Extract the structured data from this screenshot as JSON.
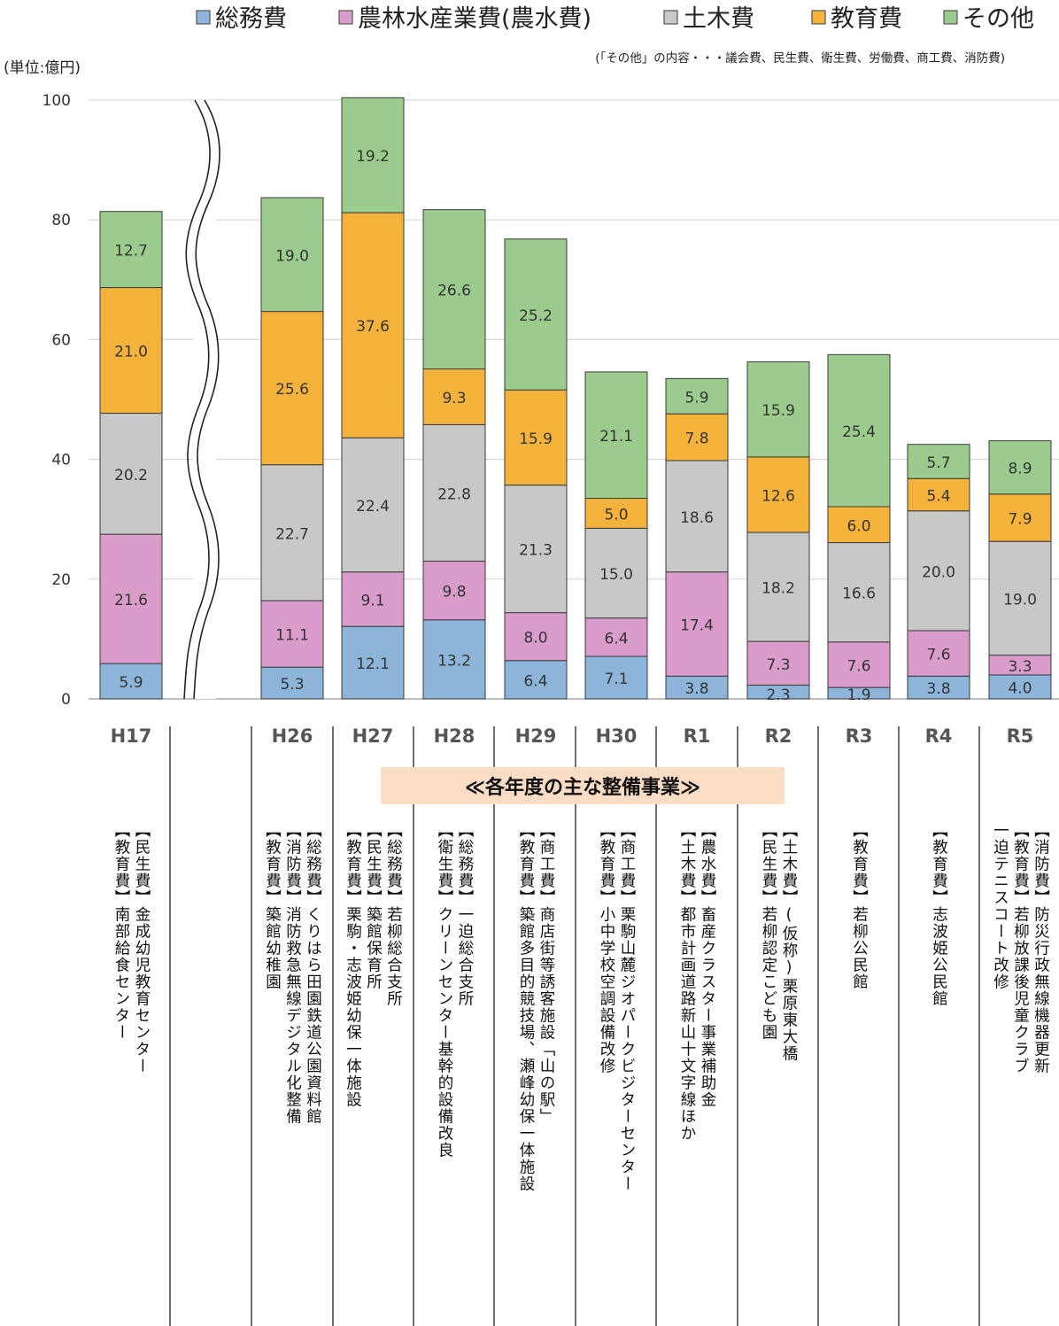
{
  "chart_data": {
    "type": "bar",
    "stacked": true,
    "unit_label": "(単位:億円)",
    "note": "(「その他」の内容・・・議会費、民生費、衛生費、労働費、商工費、消防費)",
    "ylim": [
      0,
      100
    ],
    "yticks": [
      "0",
      "20",
      "40",
      "60",
      "80",
      "100"
    ],
    "grid": true,
    "legend_position": "top",
    "categories": [
      "H17",
      "H26",
      "H27",
      "H28",
      "H29",
      "H30",
      "R1",
      "R2",
      "R3",
      "R4",
      "R5"
    ],
    "axis_break": "between H17 and H26",
    "series": [
      {
        "name": "総務費",
        "color": "#8db4d9",
        "values": [
          5.9,
          5.3,
          12.1,
          13.2,
          6.4,
          7.1,
          3.8,
          2.3,
          1.9,
          3.8,
          4.0
        ]
      },
      {
        "name": "農林水産業費(農水費)",
        "color": "#d99ccb",
        "values": [
          21.6,
          11.1,
          9.1,
          9.8,
          8.0,
          6.4,
          17.4,
          7.3,
          7.6,
          7.6,
          3.3
        ]
      },
      {
        "name": "土木費",
        "color": "#c8c8c8",
        "values": [
          20.2,
          22.7,
          22.4,
          22.8,
          21.3,
          15.0,
          18.6,
          18.2,
          16.6,
          20.0,
          19.0
        ]
      },
      {
        "name": "教育費",
        "color": "#f6b33c",
        "values": [
          21.0,
          25.6,
          37.6,
          9.3,
          15.9,
          5.0,
          7.8,
          12.6,
          6.0,
          5.4,
          7.9
        ]
      },
      {
        "name": "その他",
        "color": "#9ccb8e",
        "values": [
          12.7,
          19.0,
          19.2,
          26.6,
          25.2,
          21.1,
          5.9,
          15.9,
          25.4,
          5.7,
          8.9
        ]
      }
    ]
  },
  "projects": {
    "heading": "≪各年度の主な整備事業≫",
    "columns": [
      {
        "year": "H17",
        "lines": [
          "【民生費】金成幼児教育センター",
          "【教育費】南部給食センター"
        ]
      },
      {
        "year": "",
        "lines": []
      },
      {
        "year": "H26",
        "lines": [
          "【総務費】くりはら田園鉄道公園資料館",
          "【消防費】消防救急無線デジタル化整備",
          "【教育費】築館幼稚園"
        ]
      },
      {
        "year": "H27",
        "lines": [
          "【総務費】若柳総合支所",
          "【民生費】築館保育所",
          "【教育費】栗駒・志波姫幼保一体施設"
        ]
      },
      {
        "year": "H28",
        "lines": [
          "【総務費】一迫総合支所",
          "【衛生費】クリーンセンター基幹的設備改良"
        ]
      },
      {
        "year": "H29",
        "lines": [
          "【商工費】商店街等誘客施設「山の駅」",
          "【教育費】築館多目的競技場、瀬峰幼保一体施設"
        ]
      },
      {
        "year": "H30",
        "lines": [
          "【商工費】栗駒山麓ジオパークビジターセンター",
          "【教育費】小中学校空調設備改修"
        ]
      },
      {
        "year": "R1",
        "lines": [
          "【農水費】畜産クラスター事業補助金",
          "【土木費】都市計画道路新山十文字線ほか"
        ]
      },
      {
        "year": "R2",
        "lines": [
          "【土木費】(仮称)栗原東大橋",
          "【民生費】若柳認定こども園"
        ]
      },
      {
        "year": "R3",
        "lines": [
          "【教育費】若柳公民館"
        ]
      },
      {
        "year": "R4",
        "lines": [
          "【教育費】志波姫公民館"
        ]
      },
      {
        "year": "R5",
        "lines": [
          "【消防費】防災行政無線機器更新",
          "【教育費】若柳放課後児童クラブ",
          "一迫テニスコート改修"
        ]
      }
    ]
  }
}
